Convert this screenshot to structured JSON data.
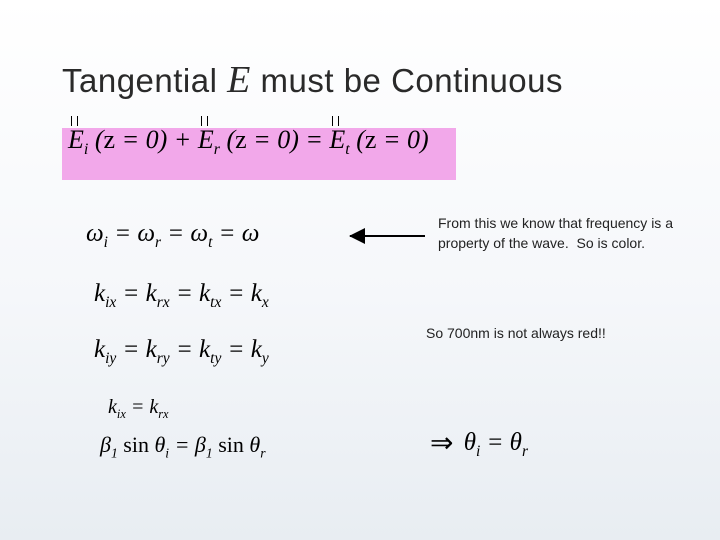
{
  "title": {
    "part1": "Tangential ",
    "symbol": "E",
    "part2": " must be Continuous",
    "fontsize": 33,
    "color": "#2a2a2a"
  },
  "highlight_color": "#f2a8ea",
  "background_gradient": [
    "#ffffff",
    "#f5f7fa",
    "#e8edf2"
  ],
  "equations": {
    "main": "E̅ⁱ(z=0) + E̅ʳ(z=0) = E̅ᵗ(z=0)",
    "main_html": "<span class='vec'><span class='arrw'></span>E</span><sub>i</sub> (<span class='rm'>z</span> = 0) + <span class='vec'><span class='arrw'></span>E</span><sub>r</sub> (<span class='rm'>z</span> = 0) = <span class='vec'><span class='arrw'></span>E</span><sub>t</sub> (<span class='rm'>z</span> = 0)",
    "omega": "ω<sub>i</sub> = ω<sub>r</sub> = ω<sub>t</sub> = ω",
    "kx": "k<sub>ix</sub> = k<sub>rx</sub> = k<sub>tx</sub> = k<sub>x</sub>",
    "ky": "k<sub>iy</sub> = k<sub>ry</sub> = k<sub>ty</sub> = k<sub>y</sub>",
    "small": "k<sub>ix</sub> = k<sub>rx</sub>",
    "beta": "β<sub>1</sub> <span class='rm'>sin</span> θ<sub>i</sub> = β<sub>1</sub> <span class='rm'>sin</span> θ<sub>r</sub>",
    "theta": "<span class='implies'>⇒</span> θ<sub>i</sub> = θ<sub>r</sub>"
  },
  "notes": {
    "note1": "From this we know that frequency is a property of the wave.  So is color.",
    "note2": "So 700nm is not always red!!",
    "fontsize": 14,
    "color": "#222222"
  },
  "arrow": {
    "color": "#000000",
    "length": 75
  }
}
